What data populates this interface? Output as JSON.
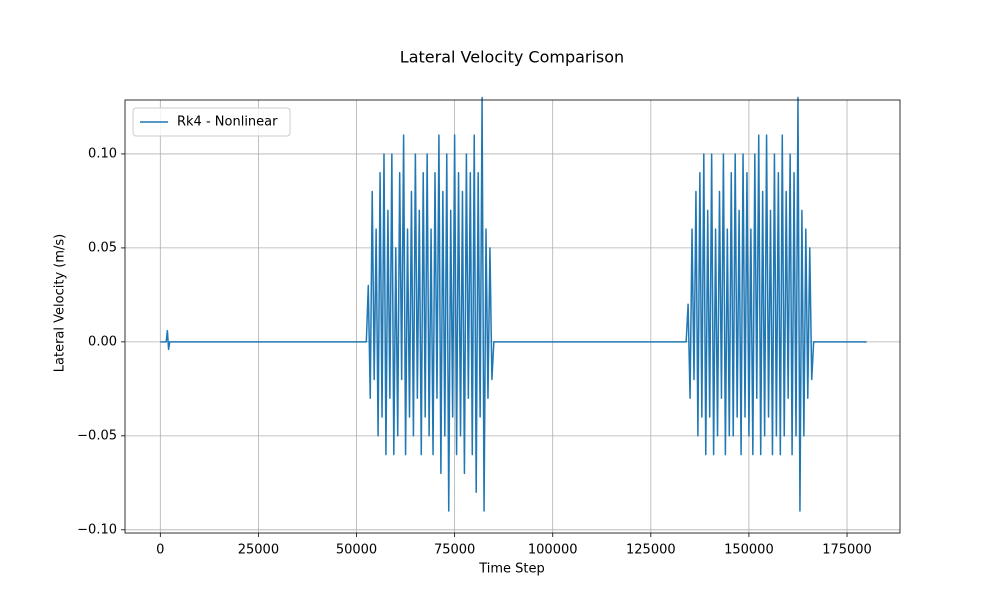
{
  "chart_data": {
    "type": "line",
    "title": "Lateral Velocity Comparison",
    "xlabel": "Time Step",
    "ylabel": "Lateral Velocity (m/s)",
    "legend": "upper left",
    "grid": true,
    "xlim": [
      -9000,
      188500
    ],
    "ylim": [
      -0.1017,
      0.1287
    ],
    "xticks": [
      0,
      25000,
      50000,
      75000,
      100000,
      125000,
      150000,
      175000
    ],
    "yticks": [
      {
        "value": -0.1,
        "label": "−0.10"
      },
      {
        "value": -0.05,
        "label": "−0.05"
      },
      {
        "value": 0,
        "label": "0.00"
      },
      {
        "value": 0.05,
        "label": "0.05"
      },
      {
        "value": 0.1,
        "label": "0.10"
      }
    ],
    "x": [
      0,
      1500,
      1800,
      2100,
      2400,
      52500,
      53000,
      53500,
      54000,
      54500,
      55000,
      55500,
      56000,
      56500,
      57000,
      57500,
      58000,
      58500,
      59000,
      59500,
      60000,
      60500,
      61000,
      61500,
      62000,
      62500,
      63000,
      63500,
      64000,
      64500,
      65000,
      65500,
      66000,
      66500,
      67000,
      67500,
      68000,
      68500,
      69000,
      69500,
      70000,
      70500,
      71000,
      71500,
      72000,
      72500,
      73000,
      73500,
      74000,
      74500,
      75000,
      75500,
      76000,
      76500,
      77000,
      77500,
      78000,
      78500,
      79000,
      79500,
      80000,
      80500,
      81000,
      81500,
      82000,
      82500,
      83000,
      83500,
      84000,
      84500,
      85000,
      85500,
      134000,
      134500,
      135000,
      135500,
      136000,
      136500,
      137000,
      137500,
      138000,
      138500,
      139000,
      139500,
      140000,
      140500,
      141000,
      141500,
      142000,
      142500,
      143000,
      143500,
      144000,
      144500,
      145000,
      145500,
      146000,
      146500,
      147000,
      147500,
      148000,
      148500,
      149000,
      149500,
      150000,
      150500,
      151000,
      151500,
      152000,
      152500,
      153000,
      153500,
      154000,
      154500,
      155000,
      155500,
      156000,
      156500,
      157000,
      157500,
      158000,
      158500,
      159000,
      159500,
      160000,
      160500,
      161000,
      161500,
      162000,
      162500,
      163000,
      163500,
      164000,
      164500,
      165000,
      165500,
      166000,
      166500,
      167000,
      180000
    ],
    "series": [
      {
        "name": "Rk4 - Nonlinear",
        "color": "#1f77b4",
        "values": [
          0,
          0,
          0.006,
          -0.004,
          0,
          0,
          0.03,
          -0.03,
          0.08,
          -0.02,
          0.06,
          -0.05,
          0.09,
          -0.04,
          0.1,
          -0.06,
          0.07,
          -0.03,
          0.1,
          -0.06,
          0.05,
          -0.05,
          0.09,
          -0.02,
          0.11,
          -0.06,
          0.06,
          -0.04,
          0.08,
          -0.05,
          0.1,
          -0.03,
          0.07,
          -0.06,
          0.09,
          -0.04,
          0.1,
          -0.05,
          0.06,
          -0.06,
          0.09,
          -0.03,
          0.11,
          -0.07,
          0.08,
          -0.05,
          0.1,
          -0.09,
          0.07,
          -0.04,
          0.11,
          -0.06,
          0.09,
          -0.05,
          0.08,
          -0.07,
          0.1,
          -0.03,
          0.09,
          -0.06,
          0.11,
          -0.08,
          0.09,
          -0.04,
          0.13,
          -0.09,
          0.06,
          -0.03,
          0.05,
          -0.02,
          0,
          0,
          0,
          0.02,
          -0.03,
          0.06,
          -0.02,
          0.08,
          -0.05,
          0.09,
          -0.04,
          0.1,
          -0.06,
          0.07,
          -0.04,
          0.1,
          -0.06,
          0.06,
          -0.05,
          0.08,
          -0.03,
          0.1,
          -0.06,
          0.06,
          -0.05,
          0.09,
          -0.05,
          0.1,
          -0.04,
          0.07,
          -0.06,
          0.1,
          -0.04,
          0.09,
          -0.05,
          0.06,
          -0.06,
          0.1,
          -0.03,
          0.11,
          -0.06,
          0.08,
          -0.05,
          0.11,
          -0.04,
          0.07,
          -0.06,
          0.1,
          -0.05,
          0.09,
          -0.06,
          0.11,
          -0.05,
          0.08,
          -0.03,
          0.1,
          -0.06,
          0.09,
          -0.05,
          0.13,
          -0.09,
          0.07,
          -0.05,
          0.06,
          -0.03,
          0.05,
          -0.02,
          0,
          0,
          0
        ]
      }
    ]
  }
}
